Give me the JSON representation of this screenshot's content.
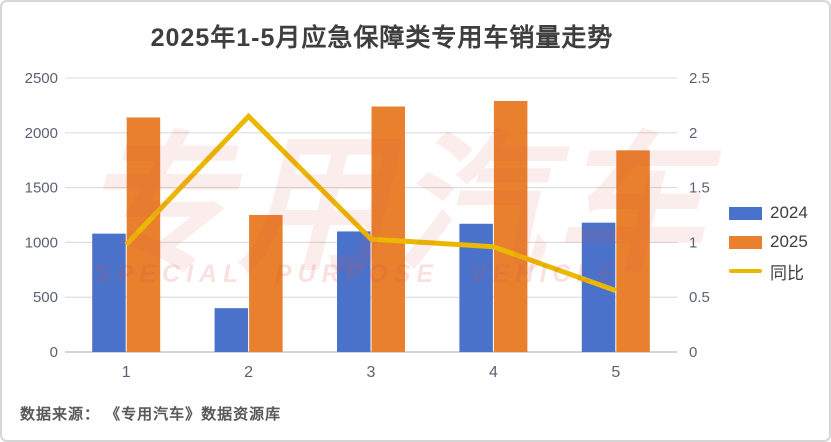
{
  "title": "2025年1-5月应急保障类专用车销量走势",
  "source": {
    "text": "数据来源： 《专用汽车》数据资源库"
  },
  "watermark": {
    "cn": "专用汽车",
    "en": "SPECIAL PURPOSE VEHICLE"
  },
  "chart_data": {
    "type": "bar",
    "title": "2025年1-5月应急保障类专用车销量走势",
    "categories": [
      "1",
      "2",
      "3",
      "4",
      "5"
    ],
    "series": [
      {
        "name": "2024",
        "type": "bar",
        "axis": "left",
        "color": "#4B72CB",
        "values": [
          1080,
          400,
          1100,
          1170,
          1180
        ]
      },
      {
        "name": "2025",
        "type": "bar",
        "axis": "left",
        "color": "#E8802D",
        "values": [
          2140,
          1250,
          2240,
          2290,
          1840
        ]
      },
      {
        "name": "同比",
        "type": "line",
        "axis": "right",
        "color": "#EBB800",
        "values": [
          0.98,
          2.15,
          1.03,
          0.96,
          0.56
        ]
      }
    ],
    "left_axis": {
      "min": 0,
      "max": 2500,
      "step": 500,
      "ticks": [
        "0",
        "500",
        "1000",
        "1500",
        "2000",
        "2500"
      ]
    },
    "right_axis": {
      "min": 0,
      "max": 2.5,
      "step": 0.5,
      "ticks": [
        "0",
        "0.5",
        "1",
        "1.5",
        "2",
        "2.5"
      ]
    },
    "legend": [
      {
        "label": "2024",
        "color": "#4B72CB",
        "shape": "rect"
      },
      {
        "label": "2025",
        "color": "#E8802D",
        "shape": "rect"
      },
      {
        "label": "同比",
        "color": "#EBB800",
        "shape": "line"
      }
    ],
    "legend_position": "right",
    "grid": true,
    "style": {
      "grid_color": "#DBDBDB",
      "axis_color": "#C7C7C7",
      "tick_color": "#5A6372",
      "xlabel_color": "#5A6372"
    }
  }
}
